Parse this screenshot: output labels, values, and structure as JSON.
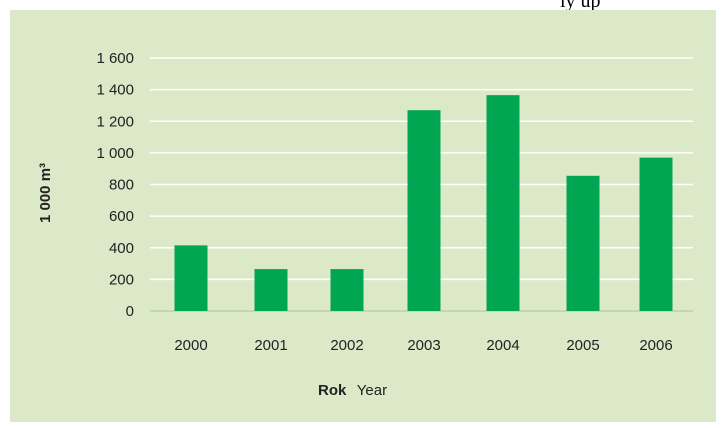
{
  "top_fragment": "ly up",
  "chart_data": {
    "type": "bar",
    "categories": [
      "2000",
      "2001",
      "2002",
      "2003",
      "2004",
      "2005",
      "2006"
    ],
    "values": [
      415,
      265,
      265,
      1270,
      1365,
      855,
      970
    ],
    "ylabel": "1 000 m³",
    "xlabel_bold": "Rok",
    "xlabel_normal": "Year",
    "ylim": [
      0,
      1600
    ],
    "yticks": [
      "0",
      "200",
      "400",
      "600",
      "800",
      "1 000",
      "1 200",
      "1 400",
      "1 600"
    ],
    "grid": true,
    "colors": {
      "bar": "#00a651",
      "background": "#dbe9c8",
      "grid": "#ffffff"
    }
  }
}
